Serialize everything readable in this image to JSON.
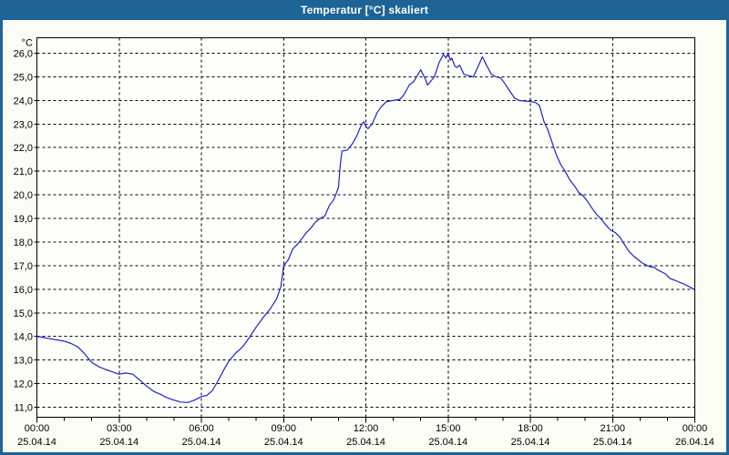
{
  "window": {
    "title": "Temperatur [°C] skaliert"
  },
  "colors": {
    "titlebar": "#1E6396",
    "window_border": "#1E6396",
    "background": "#FBFDF5",
    "plot_background": "#FEFFFB",
    "line": "#2121C8",
    "grid": "#000000",
    "text": "#000000"
  },
  "chart_data": {
    "type": "line",
    "title": "Temperatur [°C] skaliert",
    "ylabel": "°C",
    "xlabel": "",
    "ylim": [
      11,
      26
    ],
    "xlim_hours": [
      0,
      24
    ],
    "grid": "dashed black, horizontal every 1.0 °C, vertical every 3 h",
    "legend": "none",
    "y_ticks": [
      {
        "value": 26,
        "label": "26,0"
      },
      {
        "value": 25,
        "label": "25,0"
      },
      {
        "value": 24,
        "label": "24,0"
      },
      {
        "value": 23,
        "label": "23,0"
      },
      {
        "value": 22,
        "label": "22,0"
      },
      {
        "value": 21,
        "label": "21,0"
      },
      {
        "value": 20,
        "label": "20,0"
      },
      {
        "value": 19,
        "label": "19,0"
      },
      {
        "value": 18,
        "label": "18,0"
      },
      {
        "value": 17,
        "label": "17,0"
      },
      {
        "value": 16,
        "label": "16,0"
      },
      {
        "value": 15,
        "label": "15,0"
      },
      {
        "value": 14,
        "label": "14,0"
      },
      {
        "value": 13,
        "label": "13,0"
      },
      {
        "value": 12,
        "label": "12,0"
      },
      {
        "value": 11,
        "label": "11,0"
      }
    ],
    "x_ticks": [
      {
        "hour": 0,
        "time": "00:00",
        "date": "25.04.14"
      },
      {
        "hour": 3,
        "time": "03:00",
        "date": "25.04.14"
      },
      {
        "hour": 6,
        "time": "06:00",
        "date": "25.04.14"
      },
      {
        "hour": 9,
        "time": "09:00",
        "date": "25.04.14"
      },
      {
        "hour": 12,
        "time": "12:00",
        "date": "25.04.14"
      },
      {
        "hour": 15,
        "time": "15:00",
        "date": "25.04.14"
      },
      {
        "hour": 18,
        "time": "18:00",
        "date": "25.04.14"
      },
      {
        "hour": 21,
        "time": "21:00",
        "date": "25.04.14"
      },
      {
        "hour": 24,
        "time": "00:00",
        "date": "26.04.14"
      }
    ],
    "minor_tick_every_hours": 1,
    "series": [
      {
        "name": "Temperatur",
        "unit": "°C",
        "color": "#2121C8",
        "points": [
          [
            0,
            14.0
          ],
          [
            0.25,
            13.95
          ],
          [
            0.5,
            13.9
          ],
          [
            0.75,
            13.85
          ],
          [
            1.0,
            13.8
          ],
          [
            1.25,
            13.7
          ],
          [
            1.5,
            13.55
          ],
          [
            1.75,
            13.25
          ],
          [
            2.0,
            12.9
          ],
          [
            2.25,
            12.72
          ],
          [
            2.5,
            12.6
          ],
          [
            2.75,
            12.5
          ],
          [
            3.0,
            12.4
          ],
          [
            3.25,
            12.45
          ],
          [
            3.5,
            12.4
          ],
          [
            3.75,
            12.15
          ],
          [
            4.0,
            11.9
          ],
          [
            4.25,
            11.68
          ],
          [
            4.5,
            11.55
          ],
          [
            4.75,
            11.4
          ],
          [
            5.0,
            11.3
          ],
          [
            5.25,
            11.22
          ],
          [
            5.5,
            11.2
          ],
          [
            5.75,
            11.3
          ],
          [
            6.0,
            11.45
          ],
          [
            6.2,
            11.5
          ],
          [
            6.4,
            11.7
          ],
          [
            6.6,
            12.1
          ],
          [
            6.8,
            12.55
          ],
          [
            7.0,
            12.95
          ],
          [
            7.25,
            13.3
          ],
          [
            7.5,
            13.55
          ],
          [
            7.75,
            13.95
          ],
          [
            8.0,
            14.4
          ],
          [
            8.25,
            14.8
          ],
          [
            8.5,
            15.15
          ],
          [
            8.75,
            15.6
          ],
          [
            8.9,
            16.1
          ],
          [
            9.0,
            17.0
          ],
          [
            9.17,
            17.25
          ],
          [
            9.33,
            17.7
          ],
          [
            9.5,
            17.9
          ],
          [
            9.67,
            18.15
          ],
          [
            9.83,
            18.4
          ],
          [
            10.0,
            18.6
          ],
          [
            10.17,
            18.85
          ],
          [
            10.33,
            19.0
          ],
          [
            10.5,
            19.1
          ],
          [
            10.67,
            19.55
          ],
          [
            10.83,
            19.8
          ],
          [
            11.0,
            20.3
          ],
          [
            11.07,
            21.3
          ],
          [
            11.13,
            21.85
          ],
          [
            11.33,
            21.9
          ],
          [
            11.5,
            22.15
          ],
          [
            11.67,
            22.5
          ],
          [
            11.83,
            22.95
          ],
          [
            11.92,
            23.1
          ],
          [
            12.0,
            22.9
          ],
          [
            12.08,
            22.8
          ],
          [
            12.25,
            23.05
          ],
          [
            12.42,
            23.5
          ],
          [
            12.58,
            23.75
          ],
          [
            12.75,
            23.95
          ],
          [
            13.0,
            24.0
          ],
          [
            13.25,
            24.05
          ],
          [
            13.42,
            24.3
          ],
          [
            13.58,
            24.65
          ],
          [
            13.75,
            24.8
          ],
          [
            14.0,
            25.3
          ],
          [
            14.17,
            24.9
          ],
          [
            14.25,
            24.65
          ],
          [
            14.5,
            25.0
          ],
          [
            14.67,
            25.6
          ],
          [
            14.83,
            25.95
          ],
          [
            14.92,
            25.8
          ],
          [
            15.0,
            26.0
          ],
          [
            15.08,
            25.7
          ],
          [
            15.13,
            25.8
          ],
          [
            15.25,
            25.45
          ],
          [
            15.33,
            25.4
          ],
          [
            15.42,
            25.5
          ],
          [
            15.58,
            25.1
          ],
          [
            15.75,
            25.05
          ],
          [
            15.92,
            25.0
          ],
          [
            16.08,
            25.4
          ],
          [
            16.25,
            25.85
          ],
          [
            16.42,
            25.45
          ],
          [
            16.58,
            25.1
          ],
          [
            16.75,
            25.0
          ],
          [
            16.92,
            24.95
          ],
          [
            17.08,
            24.7
          ],
          [
            17.25,
            24.4
          ],
          [
            17.42,
            24.1
          ],
          [
            17.58,
            24.0
          ],
          [
            17.83,
            23.97
          ],
          [
            18.0,
            23.95
          ],
          [
            18.17,
            23.92
          ],
          [
            18.33,
            23.8
          ],
          [
            18.5,
            23.1
          ],
          [
            18.62,
            22.8
          ],
          [
            18.77,
            22.3
          ],
          [
            18.93,
            21.75
          ],
          [
            19.1,
            21.3
          ],
          [
            19.27,
            21.0
          ],
          [
            19.43,
            20.65
          ],
          [
            19.6,
            20.4
          ],
          [
            19.77,
            20.1
          ],
          [
            19.93,
            19.95
          ],
          [
            20.1,
            19.7
          ],
          [
            20.27,
            19.4
          ],
          [
            20.43,
            19.15
          ],
          [
            20.6,
            18.95
          ],
          [
            20.77,
            18.7
          ],
          [
            20.93,
            18.5
          ],
          [
            21.1,
            18.4
          ],
          [
            21.27,
            18.2
          ],
          [
            21.43,
            17.9
          ],
          [
            21.6,
            17.6
          ],
          [
            21.77,
            17.4
          ],
          [
            21.93,
            17.25
          ],
          [
            22.1,
            17.1
          ],
          [
            22.27,
            17.0
          ],
          [
            22.43,
            16.93
          ],
          [
            22.5,
            16.95
          ],
          [
            22.6,
            16.85
          ],
          [
            22.93,
            16.65
          ],
          [
            23.1,
            16.45
          ],
          [
            23.27,
            16.38
          ],
          [
            23.43,
            16.3
          ],
          [
            23.6,
            16.22
          ],
          [
            23.77,
            16.12
          ],
          [
            23.93,
            16.02
          ],
          [
            24.0,
            16.0
          ]
        ]
      }
    ]
  }
}
